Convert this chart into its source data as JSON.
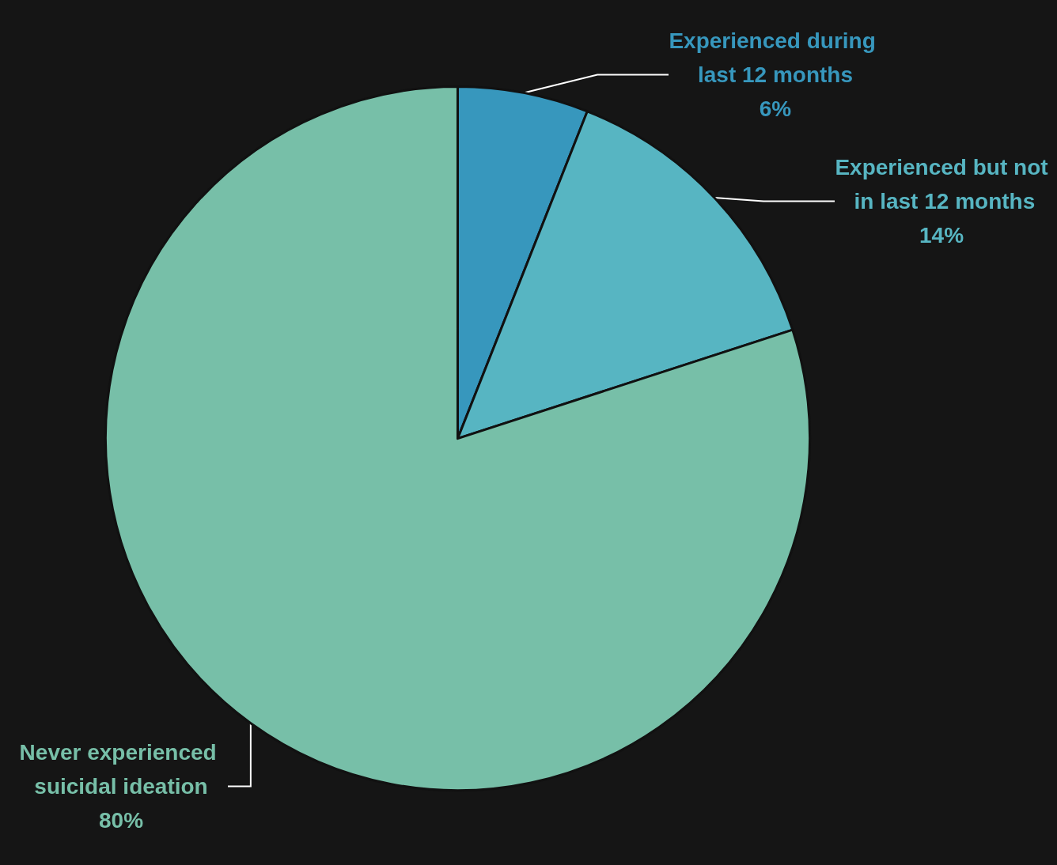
{
  "chart_data": {
    "type": "pie",
    "categories": [
      "Experienced during last 12 months",
      "Experienced but not in last 12 months",
      "Never experienced suicidal ideation"
    ],
    "values": [
      6,
      14,
      80
    ],
    "value_labels": [
      "6%",
      "14%",
      "80%"
    ],
    "colors": [
      "#3797bd",
      "#57b5c2",
      "#77bfa8"
    ],
    "legend": false
  }
}
